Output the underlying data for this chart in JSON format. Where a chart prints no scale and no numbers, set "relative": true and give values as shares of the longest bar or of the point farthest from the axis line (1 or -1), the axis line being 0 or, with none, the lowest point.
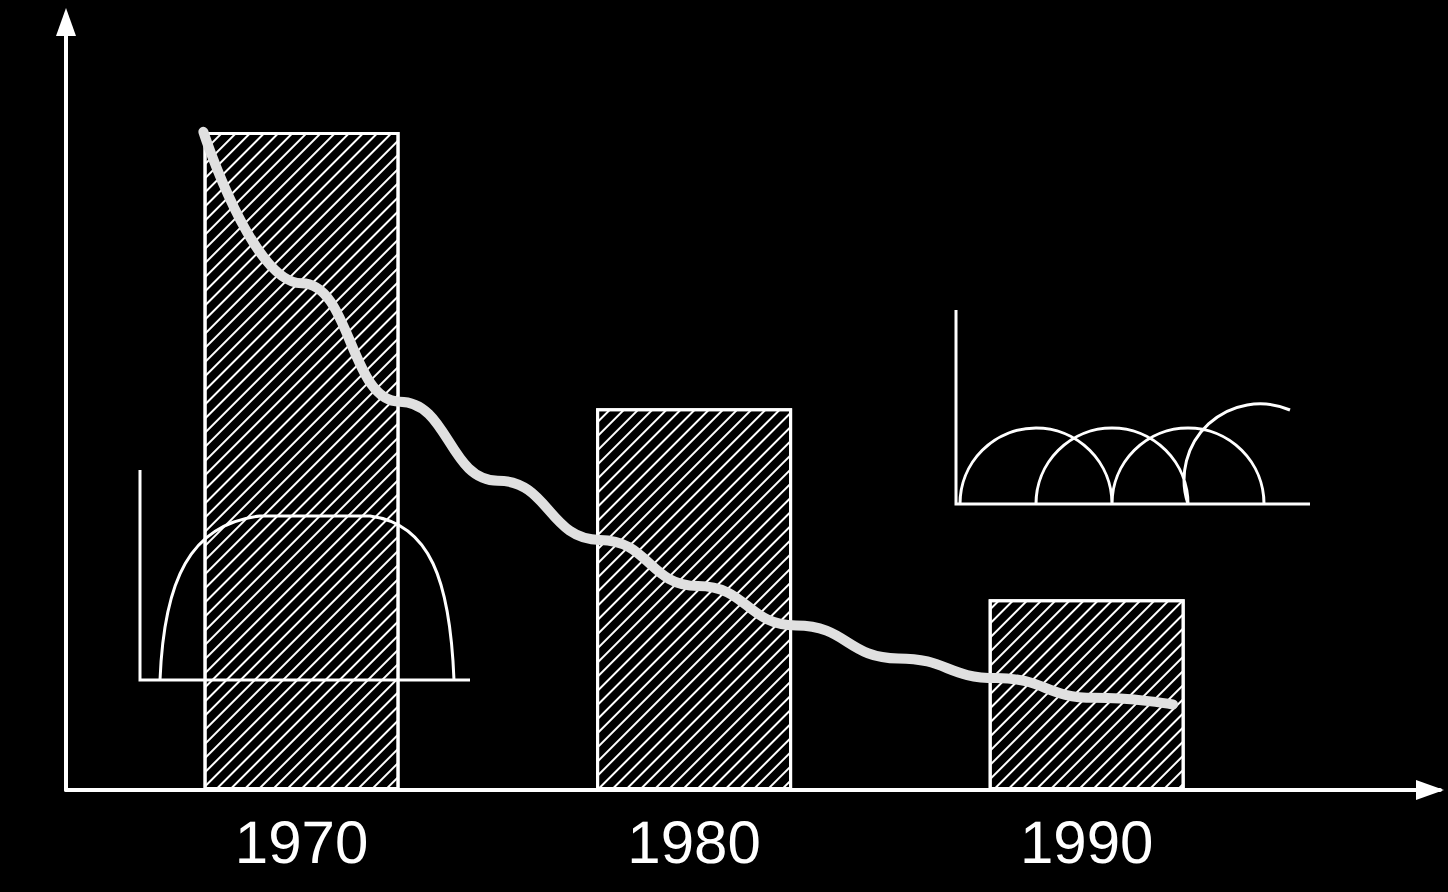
{
  "chart_data": {
    "type": "bar",
    "relative": true,
    "x": [
      1970,
      1980,
      1990
    ],
    "xlim": [
      1964,
      1999
    ],
    "xticks": [
      1970,
      1980,
      1990
    ],
    "color": "#ffffff",
    "values": [
      1,
      0.58,
      0.29
    ],
    "series": [
      {
        "type": "line",
        "color": "#e0e0e0",
        "x": [
          1967.5,
          1970,
          1972.5,
          1975,
          1977.6,
          1980.1,
          1982.6,
          1985.2,
          1987.7,
          1990.2,
          1992.2
        ],
        "values": [
          1,
          0.77,
          0.59,
          0.47,
          0.38,
          0.31,
          0.25,
          0.2,
          0.17,
          0.14,
          0.13
        ]
      }
    ],
    "grid": false,
    "marker": "none"
  }
}
